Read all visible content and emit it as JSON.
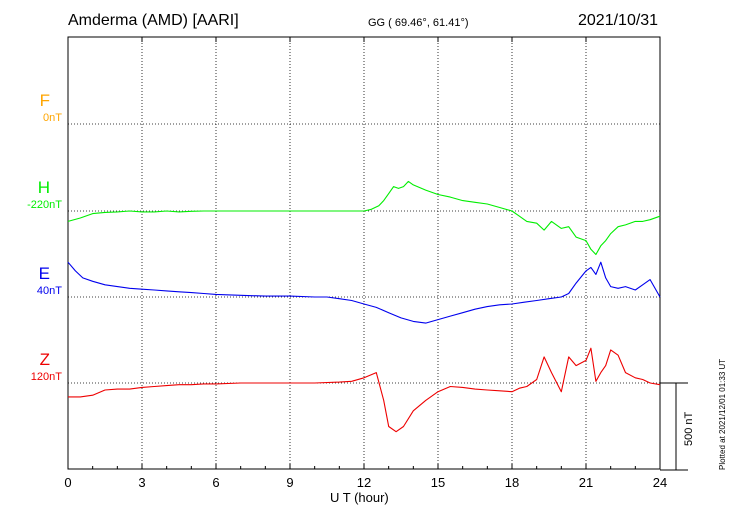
{
  "header": {
    "station": "Amderma (AMD)  [AARI]",
    "coords": "GG ( 69.46°,  61.41°)",
    "date": "2021/10/31"
  },
  "footer": {
    "plotted": "Plotted at 2021/12/01 01:33 UT"
  },
  "chart_data": {
    "type": "line",
    "xlabel": "U T (hour)",
    "xlim": [
      0,
      24
    ],
    "xticks": [
      "0",
      "3",
      "6",
      "9",
      "12",
      "15",
      "18",
      "21",
      "24"
    ],
    "scale_bar": "500 nT",
    "scale_bar_nT": 500,
    "components": [
      {
        "name": "F",
        "baseline": "0nT",
        "color": "#FFA500",
        "values": []
      },
      {
        "name": "H",
        "baseline": "-220nT",
        "color": "#00EE00",
        "x": [
          0,
          0.5,
          1,
          1.5,
          2,
          2.5,
          3,
          3.5,
          4,
          4.5,
          5,
          5.5,
          6,
          6.5,
          7,
          7.5,
          8,
          8.5,
          9,
          9.5,
          10,
          10.5,
          11,
          11.5,
          12,
          12.3,
          12.6,
          12.8,
          13,
          13.2,
          13.4,
          13.6,
          13.8,
          14,
          14.5,
          15,
          15.5,
          16,
          16.5,
          17,
          17.5,
          18,
          18.3,
          18.6,
          19,
          19.3,
          19.6,
          20,
          20.3,
          20.6,
          21,
          21.2,
          21.4,
          21.6,
          21.8,
          22,
          22.3,
          22.6,
          23,
          23.3,
          23.6,
          24
        ],
        "values": [
          -60,
          -40,
          -15,
          -8,
          -5,
          0,
          -5,
          -5,
          0,
          -5,
          -2,
          0,
          0,
          0,
          0,
          0,
          0,
          0,
          0,
          0,
          0,
          0,
          0,
          0,
          0,
          10,
          30,
          60,
          100,
          140,
          130,
          140,
          170,
          150,
          120,
          95,
          80,
          60,
          50,
          40,
          20,
          0,
          -30,
          -60,
          -70,
          -110,
          -60,
          -100,
          -90,
          -150,
          -170,
          -220,
          -250,
          -200,
          -170,
          -130,
          -90,
          -80,
          -60,
          -60,
          -50,
          -30
        ]
      },
      {
        "name": "E",
        "baseline": "40nT",
        "color": "#0000EE",
        "x": [
          0,
          0.3,
          0.6,
          1,
          1.5,
          2,
          2.5,
          3,
          3.5,
          4,
          4.5,
          5,
          5.5,
          6,
          7,
          8,
          9,
          10,
          10.5,
          11,
          11.5,
          12,
          12.5,
          13,
          13.5,
          14,
          14.5,
          15,
          15.5,
          16,
          16.5,
          17,
          17.5,
          18,
          18.5,
          19,
          19.5,
          20,
          20.3,
          20.6,
          21,
          21.2,
          21.4,
          21.6,
          21.8,
          22,
          22.3,
          22.6,
          23,
          23.3,
          23.6,
          24
        ],
        "values": [
          200,
          150,
          110,
          90,
          70,
          60,
          50,
          45,
          40,
          35,
          30,
          25,
          20,
          15,
          10,
          5,
          5,
          0,
          0,
          -10,
          -20,
          -40,
          -60,
          -90,
          -120,
          -140,
          -150,
          -130,
          -110,
          -90,
          -70,
          -55,
          -45,
          -40,
          -30,
          -20,
          -10,
          0,
          20,
          80,
          150,
          170,
          130,
          200,
          110,
          60,
          50,
          60,
          40,
          70,
          100,
          0
        ]
      },
      {
        "name": "Z",
        "baseline": "120nT",
        "color": "#EE0000",
        "x": [
          0,
          0.5,
          1,
          1.5,
          2,
          2.5,
          3,
          3.5,
          4,
          4.5,
          5,
          5.5,
          6,
          7,
          8,
          9,
          10,
          11,
          11.5,
          12,
          12.5,
          12.8,
          13,
          13.3,
          13.6,
          14,
          14.5,
          15,
          15.5,
          16,
          16.5,
          17,
          17.5,
          18,
          18.3,
          18.6,
          19,
          19.3,
          19.6,
          20,
          20.3,
          20.6,
          21,
          21.2,
          21.4,
          21.6,
          21.8,
          22,
          22.3,
          22.6,
          23,
          23.3,
          23.6,
          24
        ],
        "values": [
          -80,
          -80,
          -70,
          -40,
          -35,
          -35,
          -25,
          -20,
          -15,
          -10,
          -10,
          -5,
          -5,
          0,
          0,
          0,
          0,
          5,
          10,
          30,
          60,
          -100,
          -250,
          -280,
          -250,
          -160,
          -100,
          -50,
          -20,
          -25,
          -35,
          -40,
          -45,
          -50,
          -30,
          -20,
          20,
          150,
          60,
          -50,
          150,
          100,
          130,
          200,
          10,
          60,
          100,
          190,
          160,
          60,
          30,
          20,
          0,
          -10
        ]
      }
    ]
  }
}
